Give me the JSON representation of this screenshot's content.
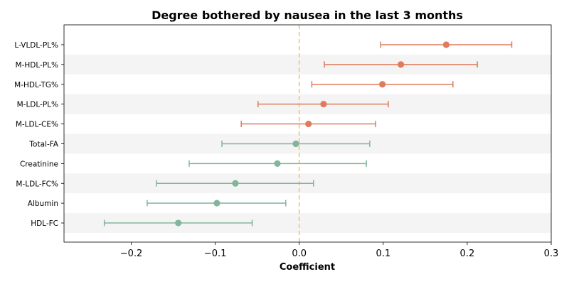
{
  "chart_data": {
    "type": "forest",
    "title": "Degree bothered by nausea in the last 3 months",
    "xlabel": "Coefficient",
    "xlim": [
      -0.28,
      0.3
    ],
    "xticks": [
      -0.2,
      -0.1,
      0.0,
      0.1,
      0.2,
      0.3
    ],
    "xtick_labels": [
      "−0.2",
      "−0.1",
      "0.0",
      "0.1",
      "0.2",
      "0.3"
    ],
    "reference_line": 0.0,
    "alternating_row_shading": true,
    "colors": {
      "positive": "#e07b5c",
      "negative": "#82b59c",
      "reference": "#f2c27e",
      "band": "#f4f4f4"
    },
    "rows": [
      {
        "label": "L-VLDL-PL%",
        "estimate": 0.175,
        "ci_low": 0.097,
        "ci_high": 0.253
      },
      {
        "label": "M-HDL-PL%",
        "estimate": 0.121,
        "ci_low": 0.03,
        "ci_high": 0.212
      },
      {
        "label": "M-HDL-TG%",
        "estimate": 0.099,
        "ci_low": 0.015,
        "ci_high": 0.183
      },
      {
        "label": "M-LDL-PL%",
        "estimate": 0.029,
        "ci_low": -0.049,
        "ci_high": 0.106
      },
      {
        "label": "M-LDL-CE%",
        "estimate": 0.011,
        "ci_low": -0.069,
        "ci_high": 0.091
      },
      {
        "label": "Total-FA",
        "estimate": -0.004,
        "ci_low": -0.092,
        "ci_high": 0.084
      },
      {
        "label": "Creatinine",
        "estimate": -0.026,
        "ci_low": -0.131,
        "ci_high": 0.08
      },
      {
        "label": "M-LDL-FC%",
        "estimate": -0.076,
        "ci_low": -0.17,
        "ci_high": 0.017
      },
      {
        "label": "Albumin",
        "estimate": -0.098,
        "ci_low": -0.181,
        "ci_high": -0.016
      },
      {
        "label": "HDL-FC",
        "estimate": -0.144,
        "ci_low": -0.232,
        "ci_high": -0.056
      }
    ]
  }
}
